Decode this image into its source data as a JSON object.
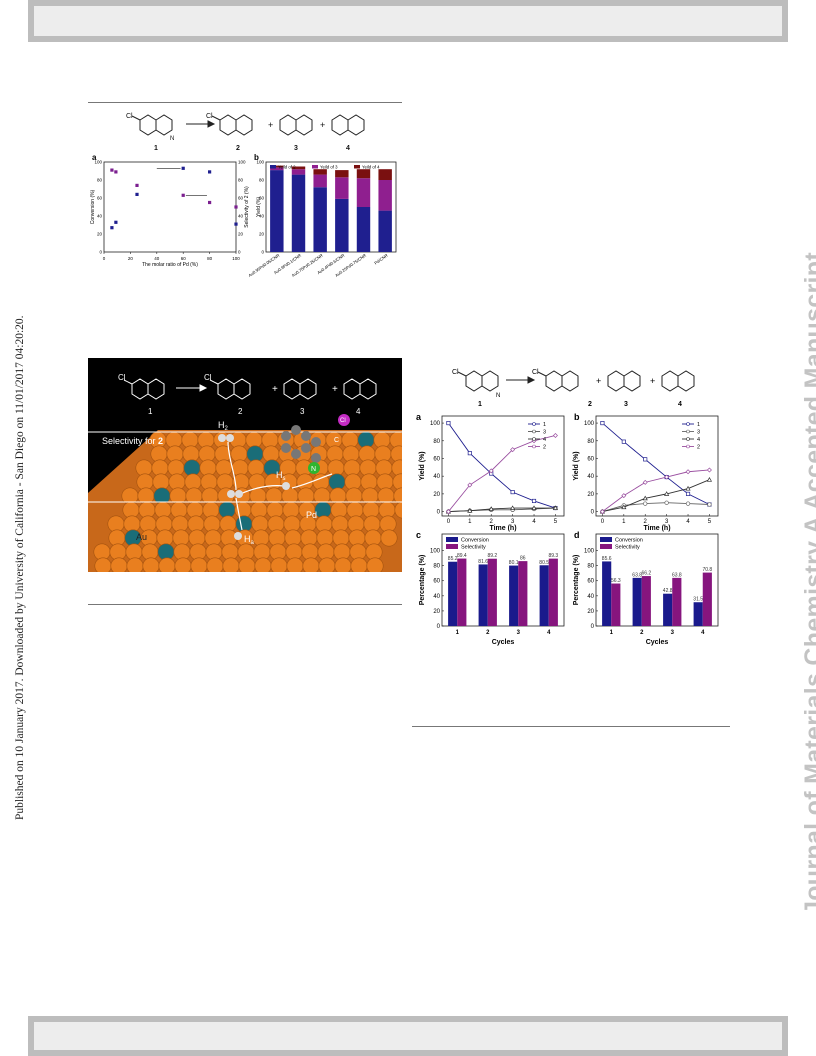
{
  "side_text": {
    "published": "Published on 10 January 2017. Downloaded by University of California - San Diego on 11/01/2017 04:20:20.",
    "journal": "Journal of Materials Chemistry A Accepted Manuscript"
  },
  "figure1": {
    "scheme_labels": [
      "1",
      "2",
      "3",
      "4"
    ],
    "cl_label": "Cl",
    "n_label": "N",
    "nh_label": "N\nH",
    "plus": "+"
  },
  "figure_ab": {
    "panel_a_letter": "a",
    "panel_b_letter": "b",
    "a_xlabel": "The molar ratio of Pd (%)",
    "a_ylabel_left": "Conversion (%)",
    "a_ylabel_right": "Selectivity of 2 (%)",
    "b_ylabel": "Yield (%)"
  },
  "figure_toc": {
    "selectivity_label": "Selectivity for ",
    "selectivity_bold": "2",
    "h2_label": "H",
    "h2_sub": "2",
    "hs_label": "H",
    "hs_sub": "s",
    "ha_label": "H",
    "ha_sub": "a",
    "au_label": "Au",
    "pd_label": "Pd",
    "cl_label": "Cl",
    "c_label": "C",
    "n_label": "N"
  },
  "figure2": {
    "panel_a_letter": "a",
    "panel_b_letter": "b",
    "panel_c_letter": "c",
    "panel_d_letter": "d",
    "time_xlabel": "Time (h)",
    "yield_ylabel": "Yield (%)",
    "cycles_xlabel": "Cycles",
    "percent_ylabel": "Percentage (%)"
  },
  "chart_data": [
    {
      "id": "fig1a",
      "type": "scatter",
      "xlabel": "The molar ratio of Pd (%)",
      "ylabel": "Conversion (%)",
      "y2label": "Selectivity of 2 (%)",
      "xlim": [
        0,
        100
      ],
      "ylim": [
        0,
        100
      ],
      "xticks": [
        0,
        20,
        40,
        60,
        80,
        100
      ],
      "yticks": [
        0,
        20,
        40,
        60,
        80,
        100
      ],
      "series": [
        {
          "color": "#1f1f8f",
          "points": [
            [
              6,
              27
            ],
            [
              9,
              33
            ],
            [
              25,
              64
            ],
            [
              60,
              93
            ],
            [
              80,
              89
            ],
            [
              100,
              31
            ]
          ]
        },
        {
          "color": "#7b1f8f",
          "points": [
            [
              6,
              91
            ],
            [
              9,
              89
            ],
            [
              25,
              74
            ],
            [
              60,
              63
            ],
            [
              80,
              55
            ],
            [
              100,
              50
            ]
          ]
        }
      ]
    },
    {
      "id": "fig1b",
      "type": "bar",
      "ylabel": "Yield (%)",
      "ylim": [
        0,
        100
      ],
      "yticks": [
        0,
        20,
        40,
        60,
        80,
        100
      ],
      "legend": [
        "Yeild of 2",
        "Yeild of 3",
        "Yeild of 4"
      ],
      "categories": [
        "Au0.95Pd0.05/CNR",
        "Au0.9Pd0.1/CNR",
        "Au0.75Pd0.25/CNR",
        "Au0.4Pd0.6/CNR",
        "Au0.25Pd0.75/CNR",
        "Pd/CNR"
      ],
      "series": [
        {
          "name": "Yeild of 2",
          "color": "#1f1f8f",
          "values": [
            91,
            86,
            72,
            59,
            50,
            46
          ]
        },
        {
          "name": "Yeild of 3",
          "color": "#8f1f8f",
          "values": [
            3,
            6,
            14,
            24,
            32,
            34
          ]
        },
        {
          "name": "Yeild of 4",
          "color": "#7a1010",
          "values": [
            2,
            3,
            6,
            8,
            10,
            12
          ]
        }
      ]
    },
    {
      "id": "fig2a",
      "type": "line",
      "xlabel": "Time (h)",
      "ylabel": "Yield (%)",
      "x": [
        0,
        1,
        2,
        3,
        4,
        5
      ],
      "xlim": [
        -0.3,
        5.4
      ],
      "ylim": [
        -5,
        108
      ],
      "yticks": [
        0,
        20,
        40,
        60,
        80,
        100
      ],
      "legend": [
        "1",
        "3",
        "4",
        "2"
      ],
      "series": [
        {
          "name": "1",
          "color": "#1f1f8f",
          "values": [
            100,
            66,
            43,
            22,
            12,
            4
          ]
        },
        {
          "name": "3",
          "color": "#555555",
          "values": [
            0,
            1,
            2,
            2,
            3,
            4
          ]
        },
        {
          "name": "4",
          "color": "#333333",
          "values": [
            0,
            1,
            3,
            4,
            4,
            4
          ]
        },
        {
          "name": "2",
          "color": "#9a4fa0",
          "values": [
            0,
            30,
            46,
            70,
            80,
            86
          ]
        }
      ]
    },
    {
      "id": "fig2b",
      "type": "line",
      "xlabel": "Time (h)",
      "ylabel": "Yield (%)",
      "x": [
        0,
        1,
        2,
        3,
        4,
        5
      ],
      "xlim": [
        -0.3,
        5.4
      ],
      "ylim": [
        -5,
        108
      ],
      "yticks": [
        0,
        20,
        40,
        60,
        80,
        100
      ],
      "legend": [
        "1",
        "3",
        "4",
        "2"
      ],
      "series": [
        {
          "name": "1",
          "color": "#1f1f8f",
          "values": [
            100,
            79,
            59,
            39,
            20,
            8
          ]
        },
        {
          "name": "3",
          "color": "#666666",
          "values": [
            0,
            7,
            9,
            10,
            9,
            8
          ]
        },
        {
          "name": "4",
          "color": "#333333",
          "values": [
            0,
            5,
            15,
            20,
            26,
            36
          ]
        },
        {
          "name": "2",
          "color": "#9a4fa0",
          "values": [
            0,
            18,
            33,
            39,
            45,
            47
          ]
        }
      ]
    },
    {
      "id": "fig2c",
      "type": "bar",
      "xlabel": "Cycles",
      "ylabel": "Percentage (%)",
      "categories": [
        "1",
        "2",
        "3",
        "4"
      ],
      "ylim": [
        0,
        100
      ],
      "yticks": [
        0,
        20,
        40,
        60,
        80,
        100
      ],
      "legend": [
        "Conversion",
        "Selectivity"
      ],
      "series": [
        {
          "name": "Conversion",
          "color": "#1a1a8c",
          "values": [
            85.2,
            81.6,
            80.1,
            80.5
          ],
          "labels": [
            "85.2",
            "81.6",
            "80.1",
            "80.5"
          ]
        },
        {
          "name": "Selectivity",
          "color": "#86157e",
          "values": [
            89.4,
            89.2,
            86,
            89.3
          ],
          "labels": [
            "89.4",
            "89.2",
            "86",
            "89.3"
          ]
        }
      ]
    },
    {
      "id": "fig2d",
      "type": "bar",
      "xlabel": "Cycles",
      "ylabel": "Percentage (%)",
      "categories": [
        "1",
        "2",
        "3",
        "4"
      ],
      "ylim": [
        0,
        100
      ],
      "yticks": [
        0,
        20,
        40,
        60,
        80,
        100
      ],
      "legend": [
        "Conversion",
        "Selectivity"
      ],
      "series": [
        {
          "name": "Conversion",
          "color": "#1a1a8c",
          "values": [
            85.6,
            63.8,
            42.8,
            31.5
          ],
          "labels": [
            "85.6",
            "63.8",
            "42.8",
            "31.5"
          ]
        },
        {
          "name": "Selectivity",
          "color": "#86157e",
          "values": [
            56.3,
            66.2,
            63.8,
            70.8
          ],
          "labels": [
            "56.3",
            "66.2",
            "63.8",
            "70.8"
          ]
        }
      ]
    }
  ]
}
